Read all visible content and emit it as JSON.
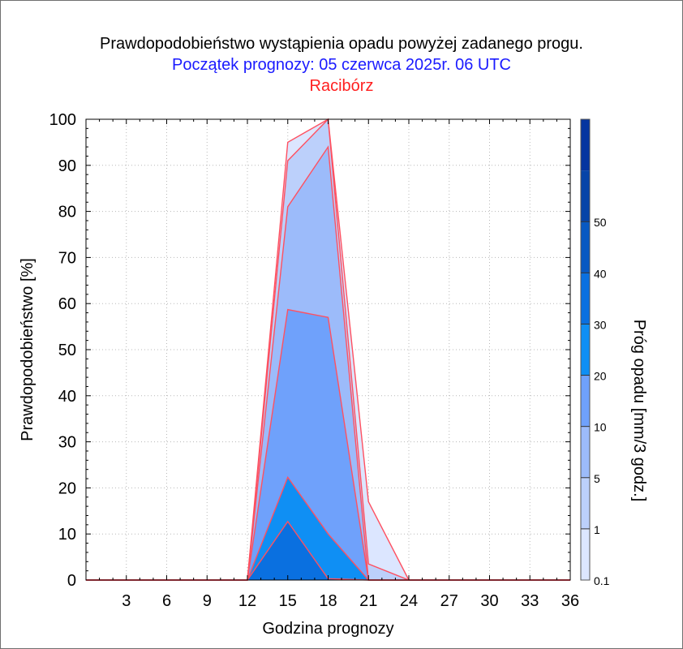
{
  "titles": {
    "line1": "Prawdopodobieństwo wystąpienia opadu powyżej zadanego progu.",
    "line2": "Początek prognozy: 05 czerwca 2025r. 06 UTC",
    "line3": "Racibórz"
  },
  "chart_data": {
    "type": "area",
    "xlabel": "Godzina prognozy",
    "ylabel": "Prawdopodobieństwo [%]",
    "colorbar_label": "Próg opadu [mm/3 godz.]",
    "xlim": [
      0,
      36
    ],
    "ylim": [
      0,
      100
    ],
    "x_ticks": [
      3,
      6,
      9,
      12,
      15,
      18,
      21,
      24,
      27,
      30,
      33,
      36
    ],
    "y_ticks": [
      0,
      10,
      20,
      30,
      40,
      50,
      60,
      70,
      80,
      90,
      100
    ],
    "grid": true,
    "x": [
      0,
      3,
      6,
      9,
      12,
      15,
      18,
      21,
      24,
      27,
      30,
      33,
      36
    ],
    "series": [
      {
        "name": "0.1",
        "color": "#dce6ff",
        "values": [
          0,
          0,
          0,
          0,
          0,
          95,
          100,
          17,
          0,
          0,
          0,
          0,
          0
        ]
      },
      {
        "name": "1",
        "color": "#bcd0fb",
        "values": [
          0,
          0,
          0,
          0,
          0,
          91,
          100,
          3.5,
          0,
          0,
          0,
          0,
          0
        ]
      },
      {
        "name": "5",
        "color": "#9cbbfa",
        "values": [
          0,
          0,
          0,
          0,
          0,
          81,
          94,
          0,
          0,
          0,
          0,
          0,
          0
        ]
      },
      {
        "name": "10",
        "color": "#6fa1fb",
        "values": [
          0,
          0,
          0,
          0,
          0,
          58.7,
          57,
          0,
          0,
          0,
          0,
          0,
          0
        ]
      },
      {
        "name": "20",
        "color": "#0f8ff4",
        "values": [
          0,
          0,
          0,
          0,
          0,
          22.3,
          10,
          0,
          0,
          0,
          0,
          0,
          0
        ]
      },
      {
        "name": "30",
        "color": "#0a70e0",
        "values": [
          0,
          0,
          0,
          0,
          0,
          12.7,
          0.3,
          0,
          0,
          0,
          0,
          0,
          0
        ]
      }
    ],
    "colorbar": {
      "levels": [
        {
          "label": "0.1",
          "color": "#dce6ff"
        },
        {
          "label": "1",
          "color": "#bcd0fb"
        },
        {
          "label": "5",
          "color": "#9cbbfa"
        },
        {
          "label": "10",
          "color": "#6fa1fb"
        },
        {
          "label": "20",
          "color": "#0f8ff4"
        },
        {
          "label": "30",
          "color": "#0a70e0"
        },
        {
          "label": "40",
          "color": "#0859c2"
        },
        {
          "label": "50",
          "color": "#0644a8"
        },
        {
          "label": "",
          "color": "#0535a0"
        }
      ]
    },
    "outline_color": "#ff5060"
  }
}
